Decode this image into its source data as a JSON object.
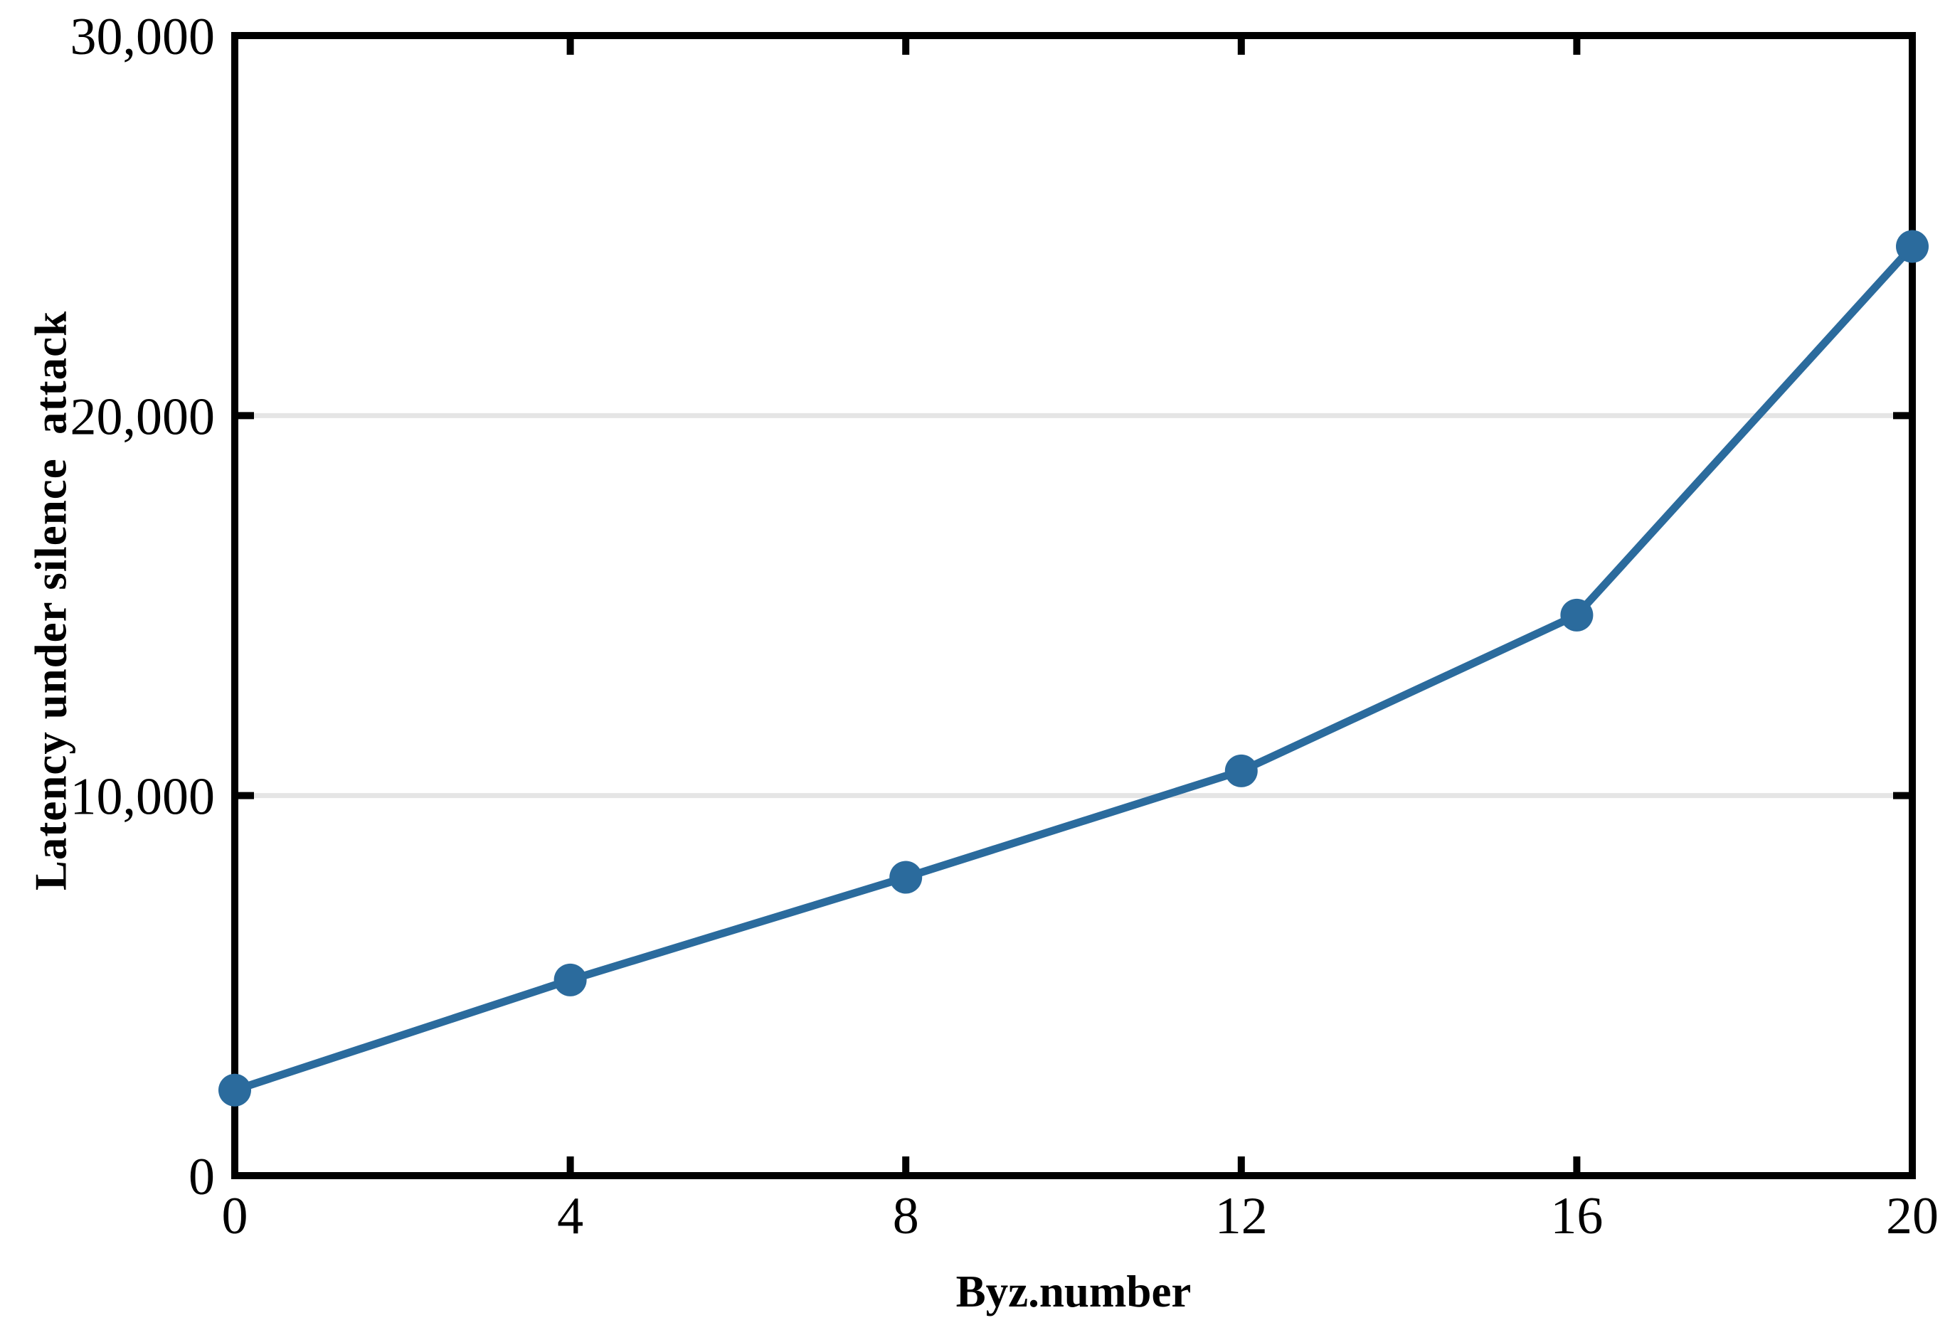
{
  "figure": {
    "background_color": "#ffffff",
    "title": ""
  },
  "chart_data": {
    "type": "line",
    "x": [
      0,
      4,
      8,
      12,
      16,
      20
    ],
    "series": [
      {
        "name": "latency-under-silence-attack",
        "values": [
          2250,
          5150,
          7850,
          10650,
          14750,
          24450
        ]
      }
    ],
    "title": "",
    "xlabel": "Byz.number",
    "ylabel": "Latency under silence  attack",
    "xlim": [
      0,
      20
    ],
    "ylim": [
      0,
      30000
    ],
    "xticks": {
      "values": [
        0,
        4,
        8,
        12,
        16,
        20
      ],
      "labels": [
        "0",
        "4",
        "8",
        "12",
        "16",
        "20"
      ]
    },
    "yticks": {
      "values": [
        0,
        10000,
        20000,
        30000
      ],
      "labels": [
        "0",
        "10,000",
        "20,000",
        "30,000"
      ]
    },
    "grid": {
      "horizontal": true,
      "vertical": false,
      "color": "#e5e5e5"
    },
    "legend": "none",
    "marker": "circle",
    "colors": {
      "line": "#2b6b9d",
      "marker": "#2b6b9d",
      "axis": "#000000",
      "tick_text": "#000000",
      "grid": "#e5e5e5"
    },
    "style": {
      "ticks": "inward-mirrored-all-sides",
      "border": "full-box"
    }
  }
}
